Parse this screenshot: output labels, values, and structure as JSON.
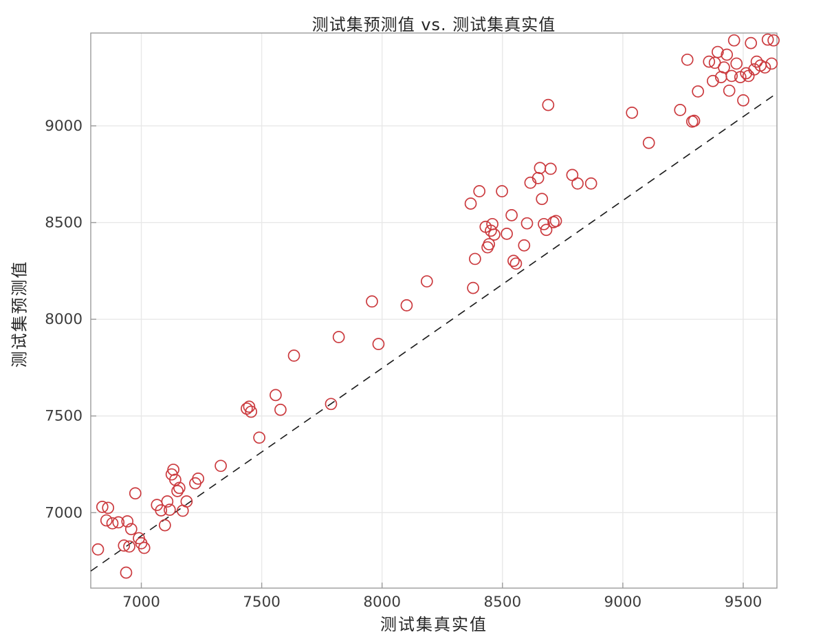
{
  "chart_data": {
    "type": "scatter",
    "title": "测试集预测值 vs. 测试集真实值",
    "xlabel": "测试集真实值",
    "ylabel": "测试集预测值",
    "xlim": [
      6790,
      9640
    ],
    "ylim": [
      6610,
      9480
    ],
    "xticks": [
      7000,
      7500,
      8000,
      8500,
      9000,
      9500
    ],
    "yticks": [
      7000,
      7500,
      8000,
      8500,
      9000
    ],
    "grid": true,
    "legend": "none",
    "marker": {
      "shape": "open-circle",
      "color": "#cb3a3e",
      "radius_px": 8
    },
    "reference_line": {
      "style": "dashed",
      "color": "#1a1a1a",
      "x": [
        6790,
        9640
      ],
      "y": [
        6698,
        9169
      ]
    },
    "colors": {
      "grid": "#e8e8e8",
      "axis_box": "#9b9b9b",
      "tick_label": "#3c3c3c"
    },
    "points": [
      [
        6820,
        6810
      ],
      [
        6838,
        7030
      ],
      [
        6862,
        7025
      ],
      [
        6855,
        6960
      ],
      [
        6880,
        6945
      ],
      [
        6905,
        6950
      ],
      [
        6928,
        6830
      ],
      [
        6937,
        6690
      ],
      [
        6942,
        6955
      ],
      [
        6950,
        6825
      ],
      [
        6958,
        6915
      ],
      [
        6975,
        7100
      ],
      [
        6990,
        6868
      ],
      [
        7000,
        6842
      ],
      [
        7012,
        6818
      ],
      [
        7065,
        7040
      ],
      [
        7082,
        7012
      ],
      [
        7098,
        6935
      ],
      [
        7108,
        7058
      ],
      [
        7118,
        7015
      ],
      [
        7126,
        7198
      ],
      [
        7133,
        7222
      ],
      [
        7141,
        7170
      ],
      [
        7150,
        7112
      ],
      [
        7158,
        7128
      ],
      [
        7172,
        7010
      ],
      [
        7188,
        7058
      ],
      [
        7224,
        7152
      ],
      [
        7236,
        7176
      ],
      [
        7330,
        7242
      ],
      [
        7438,
        7538
      ],
      [
        7448,
        7548
      ],
      [
        7456,
        7522
      ],
      [
        7490,
        7388
      ],
      [
        7558,
        7608
      ],
      [
        7578,
        7532
      ],
      [
        7634,
        7812
      ],
      [
        7788,
        7562
      ],
      [
        7820,
        7908
      ],
      [
        7958,
        8092
      ],
      [
        7985,
        7872
      ],
      [
        8102,
        8072
      ],
      [
        8186,
        8196
      ],
      [
        8368,
        8598
      ],
      [
        8378,
        8162
      ],
      [
        8386,
        8312
      ],
      [
        8404,
        8662
      ],
      [
        8430,
        8478
      ],
      [
        8438,
        8372
      ],
      [
        8444,
        8388
      ],
      [
        8452,
        8458
      ],
      [
        8458,
        8492
      ],
      [
        8466,
        8438
      ],
      [
        8498,
        8662
      ],
      [
        8518,
        8442
      ],
      [
        8538,
        8538
      ],
      [
        8546,
        8302
      ],
      [
        8556,
        8288
      ],
      [
        8590,
        8382
      ],
      [
        8602,
        8496
      ],
      [
        8616,
        8706
      ],
      [
        8648,
        8730
      ],
      [
        8656,
        8782
      ],
      [
        8664,
        8622
      ],
      [
        8672,
        8492
      ],
      [
        8682,
        8462
      ],
      [
        8690,
        9108
      ],
      [
        8700,
        8778
      ],
      [
        8712,
        8502
      ],
      [
        8722,
        8508
      ],
      [
        8790,
        8746
      ],
      [
        8812,
        8702
      ],
      [
        8868,
        8702
      ],
      [
        9038,
        9068
      ],
      [
        9108,
        8912
      ],
      [
        9238,
        9082
      ],
      [
        9268,
        9342
      ],
      [
        9288,
        9022
      ],
      [
        9296,
        9026
      ],
      [
        9312,
        9178
      ],
      [
        9358,
        9332
      ],
      [
        9374,
        9232
      ],
      [
        9382,
        9326
      ],
      [
        9394,
        9382
      ],
      [
        9408,
        9252
      ],
      [
        9420,
        9302
      ],
      [
        9432,
        9368
      ],
      [
        9442,
        9182
      ],
      [
        9452,
        9258
      ],
      [
        9462,
        9442
      ],
      [
        9472,
        9322
      ],
      [
        9488,
        9252
      ],
      [
        9500,
        9132
      ],
      [
        9512,
        9272
      ],
      [
        9522,
        9258
      ],
      [
        9532,
        9428
      ],
      [
        9546,
        9292
      ],
      [
        9556,
        9332
      ],
      [
        9572,
        9312
      ],
      [
        9590,
        9302
      ],
      [
        9602,
        9446
      ],
      [
        9618,
        9322
      ],
      [
        9626,
        9442
      ]
    ]
  }
}
